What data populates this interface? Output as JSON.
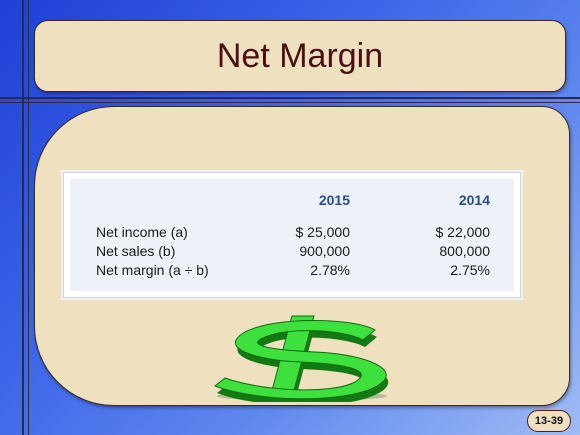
{
  "slide": {
    "title": "Net Margin",
    "page_number": "13-39"
  },
  "table": {
    "columns": [
      "",
      "2015",
      "2014"
    ],
    "rows": [
      {
        "label": "Net income (a)",
        "values": [
          "$  25,000",
          "$  22,000"
        ]
      },
      {
        "label": "Net sales (b)",
        "values": [
          "900,000",
          "800,000"
        ]
      },
      {
        "label": "Net margin (a ÷ b)",
        "values": [
          "2.78%",
          "2.75%"
        ]
      }
    ]
  },
  "graphics": {
    "dollar_sign_icon": "dollar-sign-3d",
    "dollar_color": "#33dd33"
  },
  "colors": {
    "title_color": "#4a1010",
    "panel_fill": "#efe1bf",
    "header_color": "#2a4d8a"
  }
}
